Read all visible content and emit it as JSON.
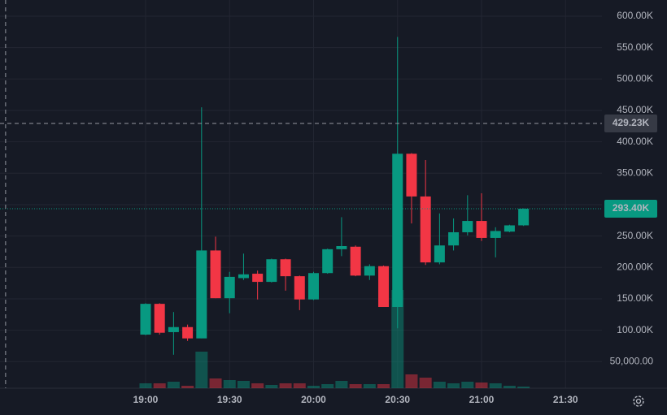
{
  "chart_data": {
    "type": "candlestick",
    "x": [
      "19:00",
      "19:05",
      "19:10",
      "19:15",
      "19:20",
      "19:25",
      "19:30",
      "19:35",
      "19:40",
      "19:45",
      "19:50",
      "19:55",
      "20:00",
      "20:05",
      "20:10",
      "20:15",
      "20:20",
      "20:25",
      "20:30",
      "20:35",
      "20:40",
      "20:45",
      "20:50",
      "20:55",
      "21:00",
      "21:05",
      "21:10",
      "21:15"
    ],
    "open": [
      93000,
      142000,
      97000,
      105000,
      87000,
      227000,
      151000,
      183000,
      190000,
      177000,
      213000,
      186000,
      149000,
      191000,
      229000,
      233000,
      187000,
      202000,
      137000,
      381000,
      313000,
      208000,
      235000,
      256000,
      274000,
      247000,
      257000,
      267000
    ],
    "high": [
      143000,
      143000,
      129000,
      109000,
      455000,
      249000,
      193000,
      222000,
      195000,
      214000,
      214000,
      187000,
      193000,
      230000,
      280000,
      235000,
      205000,
      203000,
      567000,
      382000,
      371000,
      286000,
      278000,
      315000,
      318000,
      264000,
      268000,
      294000
    ],
    "low": [
      92000,
      93000,
      61000,
      83000,
      87000,
      151000,
      127000,
      180000,
      149000,
      176000,
      163000,
      132000,
      148000,
      190000,
      218000,
      186000,
      180000,
      137000,
      103000,
      270000,
      204000,
      205000,
      227000,
      251000,
      242000,
      216000,
      256000,
      266000
    ],
    "close": [
      142000,
      96000,
      105000,
      87000,
      227000,
      151000,
      185000,
      189000,
      177000,
      213000,
      186000,
      149000,
      191000,
      229000,
      234000,
      187000,
      202000,
      137000,
      381000,
      313000,
      208000,
      235000,
      256000,
      274000,
      247000,
      258000,
      267000,
      293400
    ],
    "volume": [
      6,
      6,
      8,
      3,
      45,
      12,
      10,
      9,
      6,
      4,
      6,
      6,
      3,
      5,
      9,
      5,
      5,
      5,
      121,
      17,
      13,
      8,
      6,
      8,
      7,
      6,
      3,
      2
    ],
    "up_color": "#089981",
    "down_color": "#f23645",
    "xlim": [
      "18:08",
      "21:43"
    ],
    "xticks": [
      "19:00",
      "19:30",
      "20:00",
      "20:30",
      "21:00",
      "21:30"
    ],
    "ylim": [
      7700,
      625800
    ],
    "yticks": [
      {
        "value": 50000,
        "label": "50,000.00"
      },
      {
        "value": 100000,
        "label": "100.00K"
      },
      {
        "value": 150000,
        "label": "150.00K"
      },
      {
        "value": 200000,
        "label": "200.00K"
      },
      {
        "value": 250000,
        "label": "250.00K"
      },
      {
        "value": 300000,
        "label": "300.00K"
      },
      {
        "value": 350000,
        "label": "350.00K"
      },
      {
        "value": 400000,
        "label": "400.00K"
      },
      {
        "value": 450000,
        "label": "450.00K"
      },
      {
        "value": 500000,
        "label": "500.00K"
      },
      {
        "value": 550000,
        "label": "550.00K"
      },
      {
        "value": 600000,
        "label": "600.00K"
      }
    ],
    "grid": true,
    "crosshair": {
      "x": "18:10",
      "y": {
        "value": 429230,
        "label": "429.23K"
      }
    },
    "last_price": {
      "value": 293400,
      "label": "293.40K"
    }
  }
}
